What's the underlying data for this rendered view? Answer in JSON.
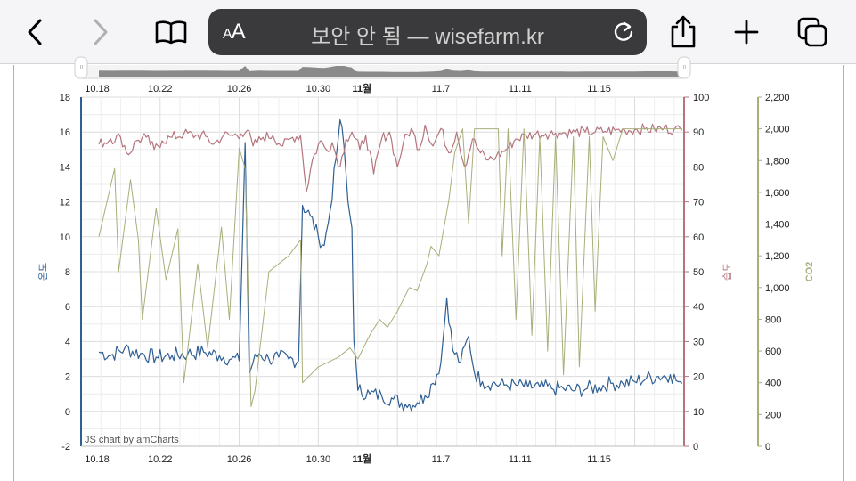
{
  "browser": {
    "back_label": "back",
    "forward_label": "forward",
    "reader_aa": "AA",
    "address_text": "보안 안 됨 — wisefarm.kr",
    "reload_label": "reload",
    "share_label": "share",
    "new_tab_label": "new tab",
    "tabs_label": "tabs"
  },
  "colors": {
    "temperature": "#2f5f93",
    "humidity": "#b4757d",
    "co2": "#a9ae7a",
    "grid": "#dcdcdc",
    "navigator_fill": "#8a8a8a"
  },
  "chart_data": {
    "type": "line",
    "credit": "JS chart by amCharts",
    "x_ticks": [
      "10.18",
      "10.22",
      "10.26",
      "10.30",
      "11월",
      "11.7",
      "11.11",
      "11.15"
    ],
    "navigator_ticks": [
      "10.18",
      "10.22",
      "10.26",
      "10.30",
      "11월",
      "11.7",
      "11.11",
      "11.15"
    ],
    "x_range_days": [
      0,
      30.5
    ],
    "axes": {
      "temperature": {
        "label": "온도",
        "min": -2,
        "max": 18,
        "ticks": [
          "-2",
          "0",
          "2",
          "4",
          "6",
          "8",
          "10",
          "12",
          "14",
          "16",
          "18"
        ]
      },
      "humidity": {
        "label": "습도",
        "min": 0,
        "max": 100,
        "ticks": [
          "0",
          "10",
          "20",
          "30",
          "40",
          "50",
          "60",
          "70",
          "80",
          "90",
          "100"
        ]
      },
      "co2": {
        "label": "CO2",
        "min": 0,
        "max": 2200,
        "ticks": [
          "0",
          "200",
          "400",
          "600",
          "800",
          "1,000",
          "1,200",
          "1,400",
          "1,600",
          "1,800",
          "2,000",
          "2,200"
        ]
      }
    },
    "series": [
      {
        "name": "온도",
        "axis": "temperature",
        "points": [
          [
            0.9,
            3.4
          ],
          [
            1.5,
            3.2
          ],
          [
            2.2,
            3.6
          ],
          [
            3,
            3.3
          ],
          [
            3.8,
            3.1
          ],
          [
            4.6,
            3.2
          ],
          [
            5.4,
            3.3
          ],
          [
            6.2,
            3.4
          ],
          [
            7,
            3.2
          ],
          [
            7.6,
            3.0
          ],
          [
            8,
            2.9
          ],
          [
            8.3,
            15.4
          ],
          [
            8.5,
            2.2
          ],
          [
            8.7,
            2.8
          ],
          [
            9,
            3.3
          ],
          [
            9.5,
            3.0
          ],
          [
            10,
            3.1
          ],
          [
            10.5,
            3.0
          ],
          [
            11,
            2.9
          ],
          [
            11.2,
            11.8
          ],
          [
            11.6,
            11.2
          ],
          [
            12,
            10.0
          ],
          [
            12.3,
            9.5
          ],
          [
            12.6,
            11.5
          ],
          [
            12.9,
            14.5
          ],
          [
            13.1,
            16.7
          ],
          [
            13.3,
            15.2
          ],
          [
            13.5,
            12.0
          ],
          [
            13.7,
            10.5
          ],
          [
            13.8,
            4.0
          ],
          [
            14,
            1.2
          ],
          [
            14.6,
            1.0
          ],
          [
            15.2,
            0.9
          ],
          [
            15.8,
            0.7
          ],
          [
            16.4,
            0.4
          ],
          [
            17,
            0.5
          ],
          [
            17.4,
            0.9
          ],
          [
            17.8,
            1.6
          ],
          [
            18.2,
            2.8
          ],
          [
            18.5,
            6.5
          ],
          [
            18.8,
            3.5
          ],
          [
            19.2,
            2.8
          ],
          [
            19.6,
            4.3
          ],
          [
            19.9,
            2.2
          ],
          [
            20.3,
            1.7
          ],
          [
            20.8,
            1.6
          ],
          [
            21.4,
            1.5
          ],
          [
            22,
            1.5
          ],
          [
            22.6,
            1.4
          ],
          [
            23.2,
            1.4
          ],
          [
            23.8,
            1.3
          ],
          [
            24.4,
            1.3
          ],
          [
            25,
            1.2
          ],
          [
            25.6,
            1.3
          ],
          [
            26.2,
            1.4
          ],
          [
            26.8,
            1.6
          ],
          [
            27.4,
            1.6
          ],
          [
            28,
            1.7
          ],
          [
            28.6,
            1.9
          ],
          [
            29.2,
            2.0
          ],
          [
            29.8,
            2.1
          ],
          [
            30.2,
            1.7
          ],
          [
            30.4,
            1.6
          ]
        ]
      },
      {
        "name": "습도",
        "axis": "humidity",
        "points": [
          [
            0.9,
            86.5
          ],
          [
            1.5,
            88
          ],
          [
            2,
            88.5
          ],
          [
            2.4,
            83.5
          ],
          [
            2.8,
            87.5
          ],
          [
            3.3,
            88.5
          ],
          [
            3.7,
            85
          ],
          [
            4.1,
            87.5
          ],
          [
            4.6,
            88.5
          ],
          [
            5.2,
            89.5
          ],
          [
            5.8,
            89
          ],
          [
            6.3,
            88.8
          ],
          [
            6.7,
            86.5
          ],
          [
            7.2,
            89
          ],
          [
            7.7,
            89
          ],
          [
            8.1,
            89.5
          ],
          [
            8.4,
            90.5
          ],
          [
            8.7,
            86
          ],
          [
            9.2,
            88.5
          ],
          [
            9.7,
            89
          ],
          [
            10.2,
            86
          ],
          [
            10.7,
            88.5
          ],
          [
            11.1,
            89
          ],
          [
            11.4,
            73
          ],
          [
            11.7,
            82
          ],
          [
            12.1,
            87.5
          ],
          [
            12.4,
            85
          ],
          [
            12.7,
            87
          ],
          [
            13.1,
            80
          ],
          [
            13.4,
            88
          ],
          [
            13.7,
            90
          ],
          [
            14.1,
            85
          ],
          [
            14.4,
            89
          ],
          [
            14.8,
            78
          ],
          [
            15.2,
            88
          ],
          [
            15.6,
            90
          ],
          [
            16,
            80
          ],
          [
            16.3,
            87
          ],
          [
            16.7,
            91
          ],
          [
            17.1,
            85
          ],
          [
            17.4,
            92
          ],
          [
            17.8,
            86
          ],
          [
            18.2,
            91
          ],
          [
            18.6,
            84
          ],
          [
            19,
            90
          ],
          [
            19.4,
            80
          ],
          [
            19.8,
            88
          ],
          [
            20.2,
            84
          ],
          [
            20.6,
            82
          ],
          [
            21,
            83
          ],
          [
            21.5,
            85
          ],
          [
            22,
            88
          ],
          [
            22.5,
            89
          ],
          [
            23,
            89.5
          ],
          [
            23.5,
            89.5
          ],
          [
            24,
            89.7
          ],
          [
            24.5,
            89.7
          ],
          [
            25,
            90
          ],
          [
            25.5,
            90
          ],
          [
            26,
            90
          ],
          [
            26.5,
            90.2
          ],
          [
            27,
            90.5
          ],
          [
            27.5,
            90.5
          ],
          [
            28,
            90.7
          ],
          [
            28.5,
            90.8
          ],
          [
            29,
            90.8
          ],
          [
            29.5,
            91
          ],
          [
            30,
            90.8
          ],
          [
            30.4,
            90.5
          ]
        ]
      },
      {
        "name": "CO2",
        "axis": "co2",
        "points": [
          [
            0.9,
            1320
          ],
          [
            1.7,
            1750
          ],
          [
            1.9,
            1100
          ],
          [
            2.5,
            1680
          ],
          [
            2.9,
            1300
          ],
          [
            3.1,
            800
          ],
          [
            3.8,
            1500
          ],
          [
            4.3,
            1050
          ],
          [
            4.9,
            1370
          ],
          [
            5.2,
            400
          ],
          [
            5.9,
            1150
          ],
          [
            6.4,
            620
          ],
          [
            7.1,
            1380
          ],
          [
            7.5,
            800
          ],
          [
            8.0,
            1880
          ],
          [
            8.3,
            1750
          ],
          [
            8.6,
            250
          ],
          [
            8.8,
            350
          ],
          [
            9.5,
            1100
          ],
          [
            10.5,
            1200
          ],
          [
            11.1,
            1300
          ],
          [
            11.2,
            400
          ],
          [
            12,
            500
          ],
          [
            13,
            560
          ],
          [
            13.6,
            620
          ],
          [
            14,
            550
          ],
          [
            14.6,
            700
          ],
          [
            15.1,
            800
          ],
          [
            15.5,
            750
          ],
          [
            16,
            850
          ],
          [
            16.6,
            1000
          ],
          [
            17,
            980
          ],
          [
            17.5,
            1150
          ],
          [
            17.7,
            1260
          ],
          [
            18.1,
            1200
          ],
          [
            18.6,
            1550
          ],
          [
            18.9,
            1850
          ],
          [
            19.3,
            2000
          ],
          [
            19.6,
            1400
          ],
          [
            19.9,
            2000
          ],
          [
            20.5,
            2000
          ],
          [
            21.1,
            2000
          ],
          [
            21.3,
            1200
          ],
          [
            21.6,
            2000
          ],
          [
            22,
            800
          ],
          [
            22.4,
            2000
          ],
          [
            22.8,
            700
          ],
          [
            23.2,
            1950
          ],
          [
            23.6,
            600
          ],
          [
            24,
            1950
          ],
          [
            24.4,
            450
          ],
          [
            24.9,
            1950
          ],
          [
            25.2,
            500
          ],
          [
            25.7,
            1950
          ],
          [
            26,
            850
          ],
          [
            26.4,
            1950
          ],
          [
            26.9,
            1800
          ],
          [
            27.4,
            2000
          ],
          [
            28,
            2000
          ],
          [
            28.6,
            2000
          ],
          [
            29.2,
            2000
          ],
          [
            29.8,
            2000
          ],
          [
            30.4,
            2000
          ]
        ]
      }
    ]
  }
}
